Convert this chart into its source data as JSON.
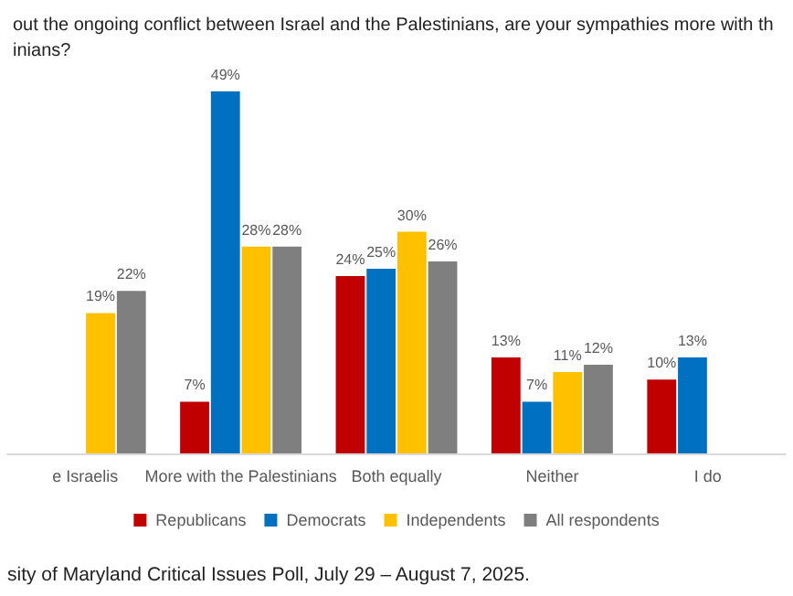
{
  "chart_data": {
    "type": "bar",
    "title": "out the ongoing conflict between Israel and the Palestinians, are your sympathies more with th\ninians?",
    "categories": [
      "e Israelis",
      "More with the Palestinians",
      "Both equally",
      "Neither",
      "I do"
    ],
    "series": [
      {
        "name": "Republicans",
        "color": "#c00000",
        "values": [
          null,
          7,
          24,
          13,
          10
        ],
        "value_labels": [
          null,
          "7%",
          "24%",
          "13%",
          "10%"
        ]
      },
      {
        "name": "Democrats",
        "color": "#0070c0",
        "values": [
          null,
          49,
          25,
          7,
          13
        ],
        "value_labels": [
          null,
          "49%",
          "25%",
          "7%",
          "13%"
        ]
      },
      {
        "name": "Independents",
        "color": "#ffc000",
        "values": [
          19,
          28,
          30,
          11,
          null
        ],
        "value_labels": [
          "19%",
          "28%",
          "30%",
          "11%",
          null
        ]
      },
      {
        "name": "All respondents",
        "color": "#7f7f7f",
        "values": [
          22,
          28,
          26,
          12,
          null
        ],
        "value_labels": [
          "22%",
          "28%",
          "26%",
          "12%",
          null
        ]
      }
    ],
    "legend": "bottom",
    "annotations": [
      "sity of Maryland Critical Issues Poll, July 29 – August 7, 2025."
    ]
  }
}
